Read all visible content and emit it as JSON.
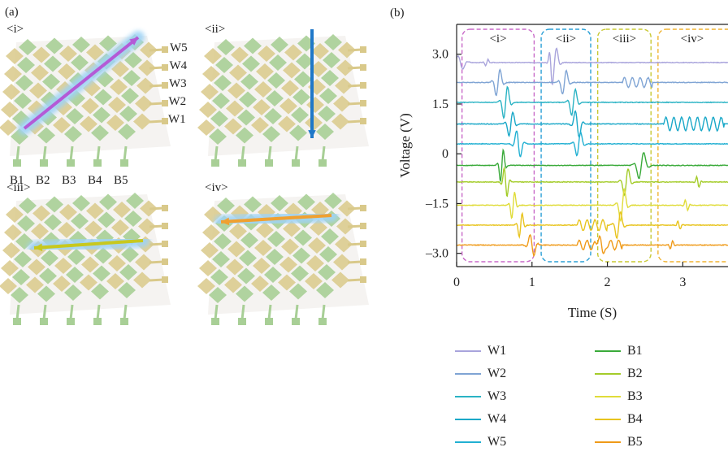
{
  "panel_a": {
    "label": "(a)",
    "subpanels": [
      {
        "label": "<i>",
        "arrow_color": "#b45ad6",
        "direction": "diagonal"
      },
      {
        "label": "<ii>",
        "arrow_color": "#1f78c8",
        "direction": "vertical"
      },
      {
        "label": "<iii>",
        "arrow_color": "#c8c81e",
        "direction": "horizontal"
      },
      {
        "label": "<iv>",
        "arrow_color": "#f0a030",
        "direction": "horizontal"
      }
    ],
    "row_labels": [
      "W5",
      "W4",
      "W3",
      "W2",
      "W1"
    ],
    "col_labels": [
      "B1",
      "B2",
      "B3",
      "B4",
      "B5"
    ],
    "colors": {
      "row_electrode": "#d9c98a",
      "col_electrode": "#a8cf96",
      "glow": "#9fd3f5"
    }
  },
  "chart_data": {
    "type": "line",
    "panel_label": "(b)",
    "xlabel": "Time (S)",
    "ylabel": "Voltage (V)",
    "xlim": [
      0,
      3.6
    ],
    "ylim": [
      -3.4,
      3.9
    ],
    "xticks": [
      0,
      1,
      2,
      3
    ],
    "xtick_labels": [
      "0",
      "1",
      "2",
      "3"
    ],
    "yticks": [
      3.0,
      1.5,
      0,
      -1.5,
      -3.0
    ],
    "ytick_labels": [
      "3.0",
      "1.5",
      "0",
      "–1.5",
      "–3.0"
    ],
    "regions": [
      {
        "label": "<i>",
        "x0": 0.05,
        "x1": 1.05,
        "color": "#c869c8"
      },
      {
        "label": "<ii>",
        "x0": 1.1,
        "x1": 1.8,
        "color": "#2a9fd6"
      },
      {
        "label": "<iii>",
        "x0": 1.85,
        "x1": 2.6,
        "color": "#c8c832"
      },
      {
        "label": "<iv>",
        "x0": 2.65,
        "x1": 3.6,
        "color": "#f0b432"
      }
    ],
    "series": [
      {
        "name": "W1",
        "color": "#a9a4dc",
        "baseline": 2.75
      },
      {
        "name": "W2",
        "color": "#7fa4d4",
        "baseline": 2.15
      },
      {
        "name": "W3",
        "color": "#2ab3c4",
        "baseline": 1.55
      },
      {
        "name": "W4",
        "color": "#1aa8c8",
        "baseline": 0.9
      },
      {
        "name": "W5",
        "color": "#22b0d2",
        "baseline": 0.3
      },
      {
        "name": "B1",
        "color": "#3aaa3a",
        "baseline": -0.35
      },
      {
        "name": "B2",
        "color": "#a4cc2a",
        "baseline": -0.85
      },
      {
        "name": "B3",
        "color": "#e0dc3a",
        "baseline": -1.55
      },
      {
        "name": "B4",
        "color": "#e8c41e",
        "baseline": -2.15
      },
      {
        "name": "B5",
        "color": "#ef9a18",
        "baseline": -2.75
      }
    ]
  }
}
